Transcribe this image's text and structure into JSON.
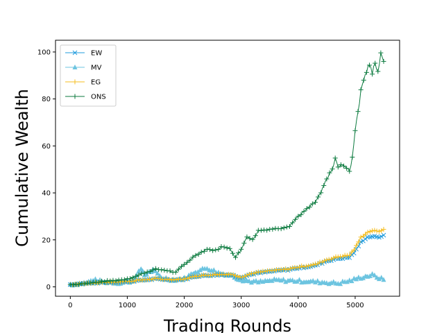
{
  "chart_data": {
    "type": "line",
    "title": "",
    "xlabel": "Trading Rounds",
    "ylabel": "Cumulative Wealth",
    "xlim": [
      -260,
      5780
    ],
    "ylim": [
      -4,
      105
    ],
    "xticks": [
      0,
      1000,
      2000,
      3000,
      4000,
      5000
    ],
    "yticks": [
      0,
      20,
      40,
      60,
      80,
      100
    ],
    "grid": false,
    "legend_position": "top-left",
    "series": [
      {
        "name": "EW",
        "color": "#1f9bde",
        "marker": "x",
        "x": [
          0,
          500,
          1000,
          1250,
          1500,
          1800,
          2000,
          2200,
          2500,
          2800,
          3000,
          3200,
          3500,
          3800,
          4000,
          4300,
          4500,
          4700,
          4900,
          5000,
          5100,
          5200,
          5300,
          5400,
          5500
        ],
        "y": [
          1,
          1.8,
          2.2,
          2.8,
          3.3,
          3.0,
          3.2,
          4.5,
          5.0,
          5.2,
          4.0,
          5.5,
          6.5,
          7.2,
          8.0,
          9.0,
          11.0,
          12.0,
          12.5,
          15.0,
          19.0,
          21.0,
          21.5,
          21.0,
          22.0
        ]
      },
      {
        "name": "MV",
        "color": "#6cc4e0",
        "marker": "^",
        "x": [
          0,
          300,
          400,
          600,
          900,
          1100,
          1250,
          1300,
          1450,
          1600,
          1800,
          2000,
          2200,
          2400,
          2600,
          2800,
          2950,
          3100,
          3300,
          3600,
          4000,
          4400,
          4700,
          4900,
          5100,
          5200,
          5300,
          5500
        ],
        "y": [
          1,
          1.8,
          3.0,
          2.0,
          1.7,
          2.5,
          8.0,
          5.0,
          7.0,
          4.0,
          3.0,
          3.5,
          6.5,
          8.0,
          6.0,
          5.0,
          3.5,
          2.5,
          2.0,
          2.8,
          2.5,
          2.0,
          1.5,
          2.5,
          4.0,
          4.5,
          5.0,
          3.0
        ]
      },
      {
        "name": "EG",
        "color": "#f5bd1f",
        "marker": "+",
        "x": [
          0,
          500,
          1000,
          1250,
          1500,
          1800,
          2000,
          2200,
          2500,
          2800,
          3000,
          3200,
          3500,
          3800,
          4000,
          4300,
          4500,
          4700,
          4900,
          5000,
          5100,
          5200,
          5300,
          5400,
          5500
        ],
        "y": [
          1,
          1.8,
          2.3,
          2.9,
          3.4,
          3.1,
          3.3,
          4.6,
          5.2,
          5.4,
          4.2,
          5.8,
          6.8,
          7.5,
          8.4,
          9.5,
          11.5,
          12.8,
          13.5,
          16.5,
          21.0,
          23.0,
          24.0,
          23.5,
          24.5
        ]
      },
      {
        "name": "ONS",
        "color": "#0b7a3e",
        "marker": "+",
        "x": [
          0,
          300,
          600,
          900,
          1100,
          1300,
          1500,
          1700,
          1850,
          1950,
          2050,
          2200,
          2400,
          2550,
          2650,
          2800,
          2900,
          3000,
          3100,
          3200,
          3300,
          3500,
          3700,
          3850,
          4000,
          4150,
          4300,
          4400,
          4500,
          4600,
          4650,
          4700,
          4800,
          4900,
          4950,
          5000,
          5050,
          5100,
          5150,
          5250,
          5300,
          5350,
          5400,
          5450,
          5500
        ],
        "y": [
          1,
          1.5,
          2.3,
          3.0,
          4.0,
          6.0,
          7.5,
          7.0,
          6.0,
          8.5,
          10.5,
          13.5,
          16.0,
          15.5,
          17.0,
          16.5,
          12.5,
          16.0,
          21.5,
          20.0,
          24.0,
          24.5,
          25.0,
          26.0,
          30.0,
          33.0,
          36.0,
          40.0,
          46.0,
          50.0,
          54.5,
          51.0,
          52.0,
          49.0,
          55.0,
          67.0,
          75.0,
          83.0,
          89.0,
          95.0,
          91.0,
          95.0,
          91.0,
          100.0,
          96.0
        ]
      }
    ]
  }
}
